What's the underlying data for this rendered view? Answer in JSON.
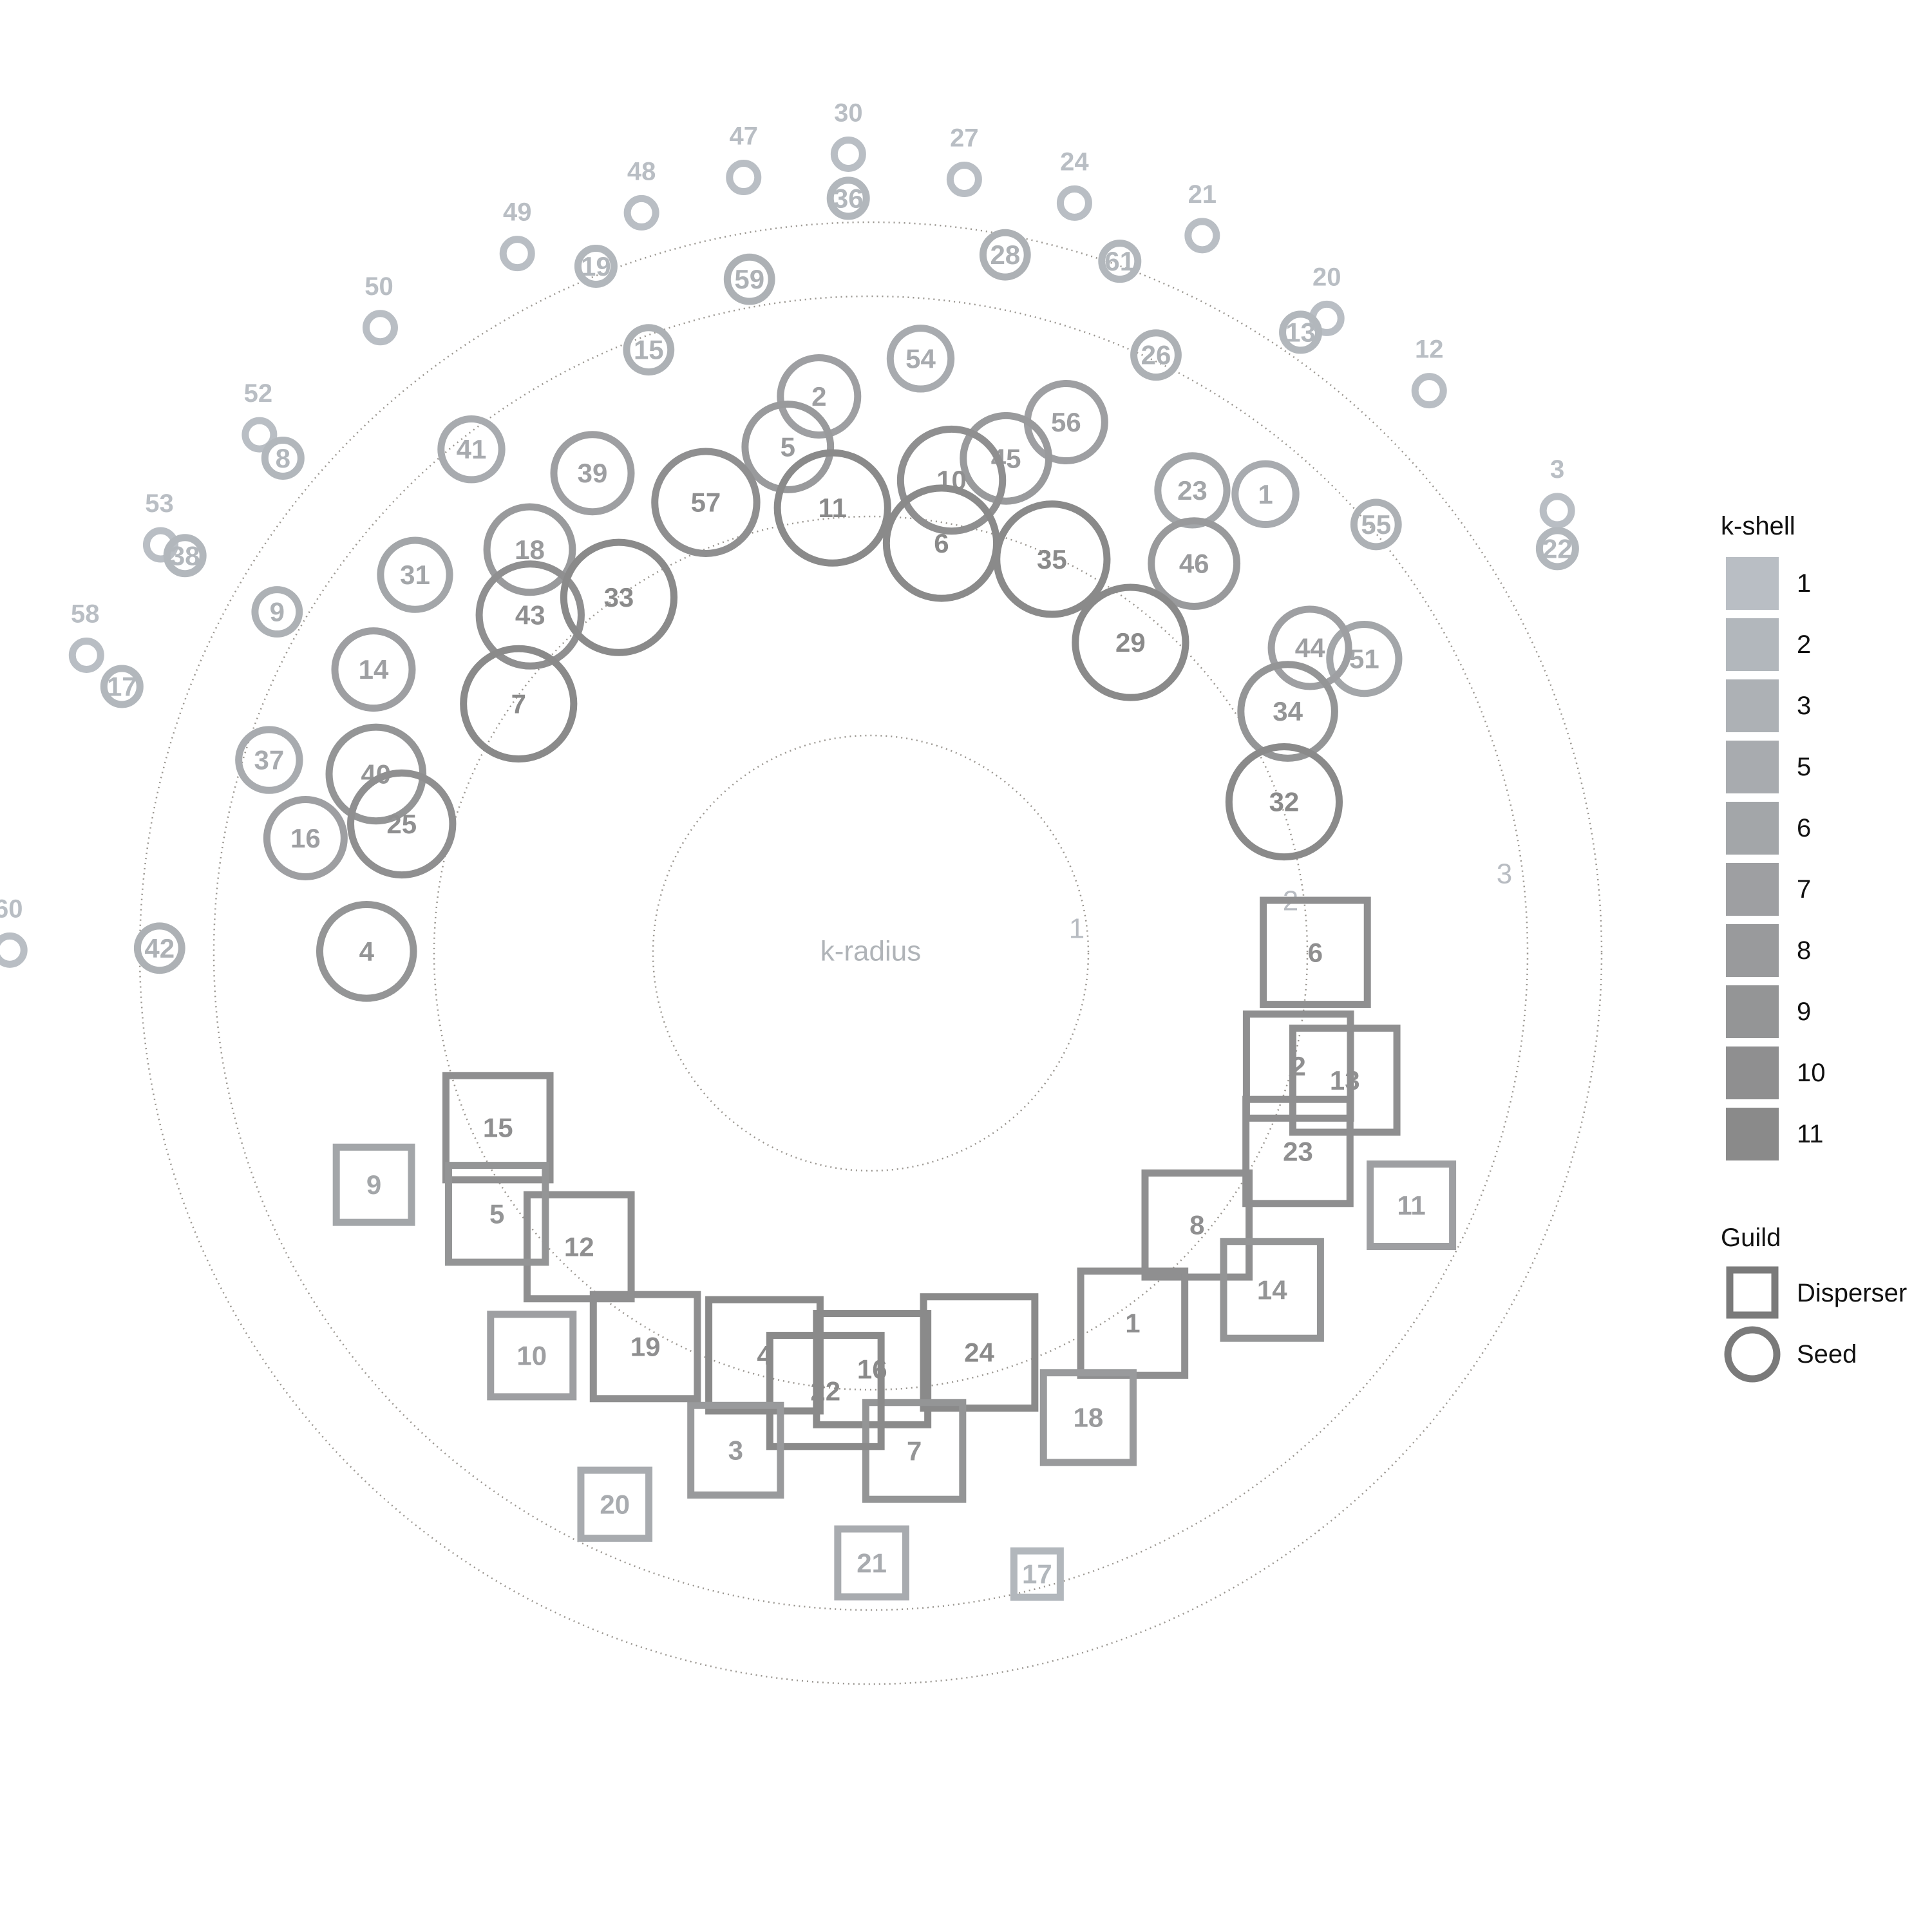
{
  "chart_data": {
    "type": "scatter",
    "polar": true,
    "center_label": "k-radius",
    "radius_ticks": [
      "1",
      "2",
      "3"
    ],
    "legend": {
      "kshell_title": "k-shell",
      "kshell_levels": [
        1,
        2,
        3,
        5,
        6,
        7,
        8,
        9,
        10,
        11
      ],
      "kshell_colors": [
        "#b9bec4",
        "#b2b7bc",
        "#adb1b5",
        "#a8abaf",
        "#a3a6a9",
        "#9e9fa2",
        "#999a9c",
        "#949596",
        "#8f8f90",
        "#8a8a8a"
      ],
      "guild_title": "Guild",
      "guild_items": [
        "Disperser",
        "Seed"
      ],
      "placement": "right"
    },
    "seeds": [
      {
        "id": "30",
        "kshell": 1,
        "kradius": 2.62,
        "angle": 91.6
      },
      {
        "id": "47",
        "kshell": 1,
        "kradius": 2.56,
        "angle": 99.3
      },
      {
        "id": "27",
        "kshell": 1,
        "kradius": 2.53,
        "angle": 83.1
      },
      {
        "id": "48",
        "kshell": 1,
        "kradius": 2.51,
        "angle": 107.2
      },
      {
        "id": "24",
        "kshell": 1,
        "kradius": 2.52,
        "angle": 74.8
      },
      {
        "id": "21",
        "kshell": 1,
        "kradius": 2.58,
        "angle": 65.2
      },
      {
        "id": "49",
        "kshell": 1,
        "kradius": 2.55,
        "angle": 116.8
      },
      {
        "id": "50",
        "kshell": 1,
        "kradius": 2.6,
        "angle": 128.1
      },
      {
        "id": "20",
        "kshell": 1,
        "kradius": 2.54,
        "angle": 54.3
      },
      {
        "id": "12",
        "kshell": 1,
        "kradius": 2.59,
        "angle": 45.2
      },
      {
        "id": "52",
        "kshell": 1,
        "kradius": 2.63,
        "angle": 139.7
      },
      {
        "id": "3",
        "kshell": 1,
        "kradius": 2.7,
        "angle": 32.8
      },
      {
        "id": "53",
        "kshell": 1,
        "kradius": 2.71,
        "angle": 150.1
      },
      {
        "id": "58",
        "kshell": 1,
        "kradius": 2.8,
        "angle": 159.2
      },
      {
        "id": "60",
        "kshell": 1,
        "kradius": 2.9,
        "angle": 179.8
      },
      {
        "id": "36",
        "kshell": 2,
        "kradius": 2.42,
        "angle": 91.7
      },
      {
        "id": "19",
        "kshell": 2,
        "kradius": 2.35,
        "angle": 111.8
      },
      {
        "id": "61",
        "kshell": 2,
        "kradius": 2.33,
        "angle": 70.2
      },
      {
        "id": "13",
        "kshell": 2,
        "kradius": 2.42,
        "angle": 55.3
      },
      {
        "id": "22",
        "kshell": 2,
        "kradius": 2.61,
        "angle": 30.5
      },
      {
        "id": "8",
        "kshell": 2,
        "kradius": 2.48,
        "angle": 139.9
      },
      {
        "id": "38",
        "kshell": 2,
        "kradius": 2.59,
        "angle": 149.9
      },
      {
        "id": "17",
        "kshell": 2,
        "kradius": 2.6,
        "angle": 160.4
      },
      {
        "id": "59",
        "kshell": 3,
        "kradius": 2.1,
        "angle": 100.2
      },
      {
        "id": "28",
        "kshell": 3,
        "kradius": 2.22,
        "angle": 79.1
      },
      {
        "id": "26",
        "kshell": 3,
        "kradius": 2.0,
        "angle": 64.5
      },
      {
        "id": "15",
        "kshell": 3,
        "kradius": 1.91,
        "angle": 110.2
      },
      {
        "id": "55",
        "kshell": 3,
        "kradius": 2.0,
        "angle": 40.3
      },
      {
        "id": "9",
        "kshell": 3,
        "kradius": 2.1,
        "angle": 150.1
      },
      {
        "id": "42",
        "kshell": 3,
        "kradius": 2.22,
        "angle": 179.6
      },
      {
        "id": "41",
        "kshell": 5,
        "kradius": 1.91,
        "angle": 128.4
      },
      {
        "id": "1",
        "kshell": 5,
        "kradius": 1.74,
        "angle": 49.3
      },
      {
        "id": "54",
        "kshell": 5,
        "kradius": 1.7,
        "angle": 85.2
      },
      {
        "id": "37",
        "kshell": 5,
        "kradius": 1.86,
        "angle": 162.2
      },
      {
        "id": "31",
        "kshell": 6,
        "kradius": 1.68,
        "angle": 140.3
      },
      {
        "id": "23",
        "kshell": 6,
        "kradius": 1.55,
        "angle": 55.2
      },
      {
        "id": "51",
        "kshell": 6,
        "kradius": 1.6,
        "angle": 30.8
      },
      {
        "id": "2",
        "kshell": 7,
        "kradius": 1.53,
        "angle": 95.3
      },
      {
        "id": "56",
        "kshell": 7,
        "kradius": 1.56,
        "angle": 69.8
      },
      {
        "id": "39",
        "kshell": 7,
        "kradius": 1.51,
        "angle": 120.1
      },
      {
        "id": "14",
        "kshell": 7,
        "kradius": 1.59,
        "angle": 150.3
      },
      {
        "id": "16",
        "kshell": 7,
        "kradius": 1.61,
        "angle": 168.5
      },
      {
        "id": "44",
        "kshell": 7,
        "kradius": 1.42,
        "angle": 34.8
      },
      {
        "id": "5",
        "kshell": 8,
        "kradius": 1.32,
        "angle": 99.3
      },
      {
        "id": "45",
        "kshell": 8,
        "kradius": 1.32,
        "angle": 74.7
      },
      {
        "id": "18",
        "kshell": 8,
        "kradius": 1.39,
        "angle": 130.2
      },
      {
        "id": "46",
        "kshell": 8,
        "kradius": 1.29,
        "angle": 50.3
      },
      {
        "id": "4",
        "kshell": 9,
        "kradius": 1.28,
        "angle": 179.8
      },
      {
        "id": "40",
        "kshell": 9,
        "kradius": 1.38,
        "angle": 160.1
      },
      {
        "id": "34",
        "kshell": 9,
        "kradius": 1.18,
        "angle": 30.1
      },
      {
        "id": "10",
        "kshell": 10,
        "kradius": 1.17,
        "angle": 80.3
      },
      {
        "id": "57",
        "kshell": 10,
        "kradius": 1.17,
        "angle": 110.1
      },
      {
        "id": "43",
        "kshell": 10,
        "kradius": 1.17,
        "angle": 135.2
      },
      {
        "id": "25",
        "kshell": 10,
        "kradius": 1.2,
        "angle": 164.6
      },
      {
        "id": "32",
        "kshell": 11,
        "kradius": 0.99,
        "angle": 20.1
      },
      {
        "id": "29",
        "kshell": 11,
        "kradius": 0.83,
        "angle": 50.1
      },
      {
        "id": "35",
        "kshell": 11,
        "kradius": 0.96,
        "angle": 65.3
      },
      {
        "id": "6",
        "kshell": 11,
        "kradius": 0.88,
        "angle": 80.2
      },
      {
        "id": "11",
        "kshell": 11,
        "kradius": 1.02,
        "angle": 94.9
      },
      {
        "id": "33",
        "kshell": 11,
        "kradius": 0.97,
        "angle": 125.3
      },
      {
        "id": "7",
        "kshell": 11,
        "kradius": 0.95,
        "angle": 144.7
      }
    ],
    "dispersers": [
      {
        "id": "6",
        "kshell": 10,
        "kradius": 1.01,
        "angle": 0.1
      },
      {
        "id": "2",
        "kshell": 10,
        "kradius": 1.0,
        "angle": 345.2
      },
      {
        "id": "13",
        "kshell": 10,
        "kradius": 1.22,
        "angle": 345.0
      },
      {
        "id": "23",
        "kshell": 10,
        "kradius": 1.13,
        "angle": 335.1
      },
      {
        "id": "8",
        "kshell": 10,
        "kradius": 0.92,
        "angle": 320.2
      },
      {
        "id": "14",
        "kshell": 9,
        "kradius": 1.37,
        "angle": 320.0
      },
      {
        "id": "1",
        "kshell": 10,
        "kradius": 1.05,
        "angle": 305.3
      },
      {
        "id": "11",
        "kshell": 7,
        "kradius": 1.7,
        "angle": 335.0
      },
      {
        "id": "18",
        "kshell": 8,
        "kradius": 1.32,
        "angle": 295.1
      },
      {
        "id": "24",
        "kshell": 11,
        "kradius": 0.87,
        "angle": 285.2
      },
      {
        "id": "16",
        "kshell": 11,
        "kradius": 0.88,
        "angle": 270.2
      },
      {
        "id": "7",
        "kshell": 9,
        "kradius": 1.26,
        "angle": 275.0
      },
      {
        "id": "22",
        "kshell": 11,
        "kradius": 0.99,
        "angle": 264.1
      },
      {
        "id": "4",
        "kshell": 11,
        "kradius": 0.88,
        "angle": 255.2
      },
      {
        "id": "3",
        "kshell": 8,
        "kradius": 1.33,
        "angle": 254.8
      },
      {
        "id": "21",
        "kshell": 5,
        "kradius": 1.76,
        "angle": 270.1
      },
      {
        "id": "19",
        "kshell": 10,
        "kradius": 1.05,
        "angle": 240.2
      },
      {
        "id": "12",
        "kshell": 10,
        "kradius": 0.87,
        "angle": 225.2
      },
      {
        "id": "15",
        "kshell": 10,
        "kradius": 0.86,
        "angle": 205.1
      },
      {
        "id": "5",
        "kshell": 9,
        "kradius": 1.06,
        "angle": 214.9
      },
      {
        "id": "10",
        "kshell": 7,
        "kradius": 1.38,
        "angle": 229.9
      },
      {
        "id": "20",
        "kshell": 5,
        "kradius": 1.75,
        "angle": 245.1
      },
      {
        "id": "9",
        "kshell": 6,
        "kradius": 1.48,
        "angle": 205.0
      },
      {
        "id": "17",
        "kshell": 2,
        "kradius": 1.91,
        "angle": 285.0
      }
    ]
  }
}
